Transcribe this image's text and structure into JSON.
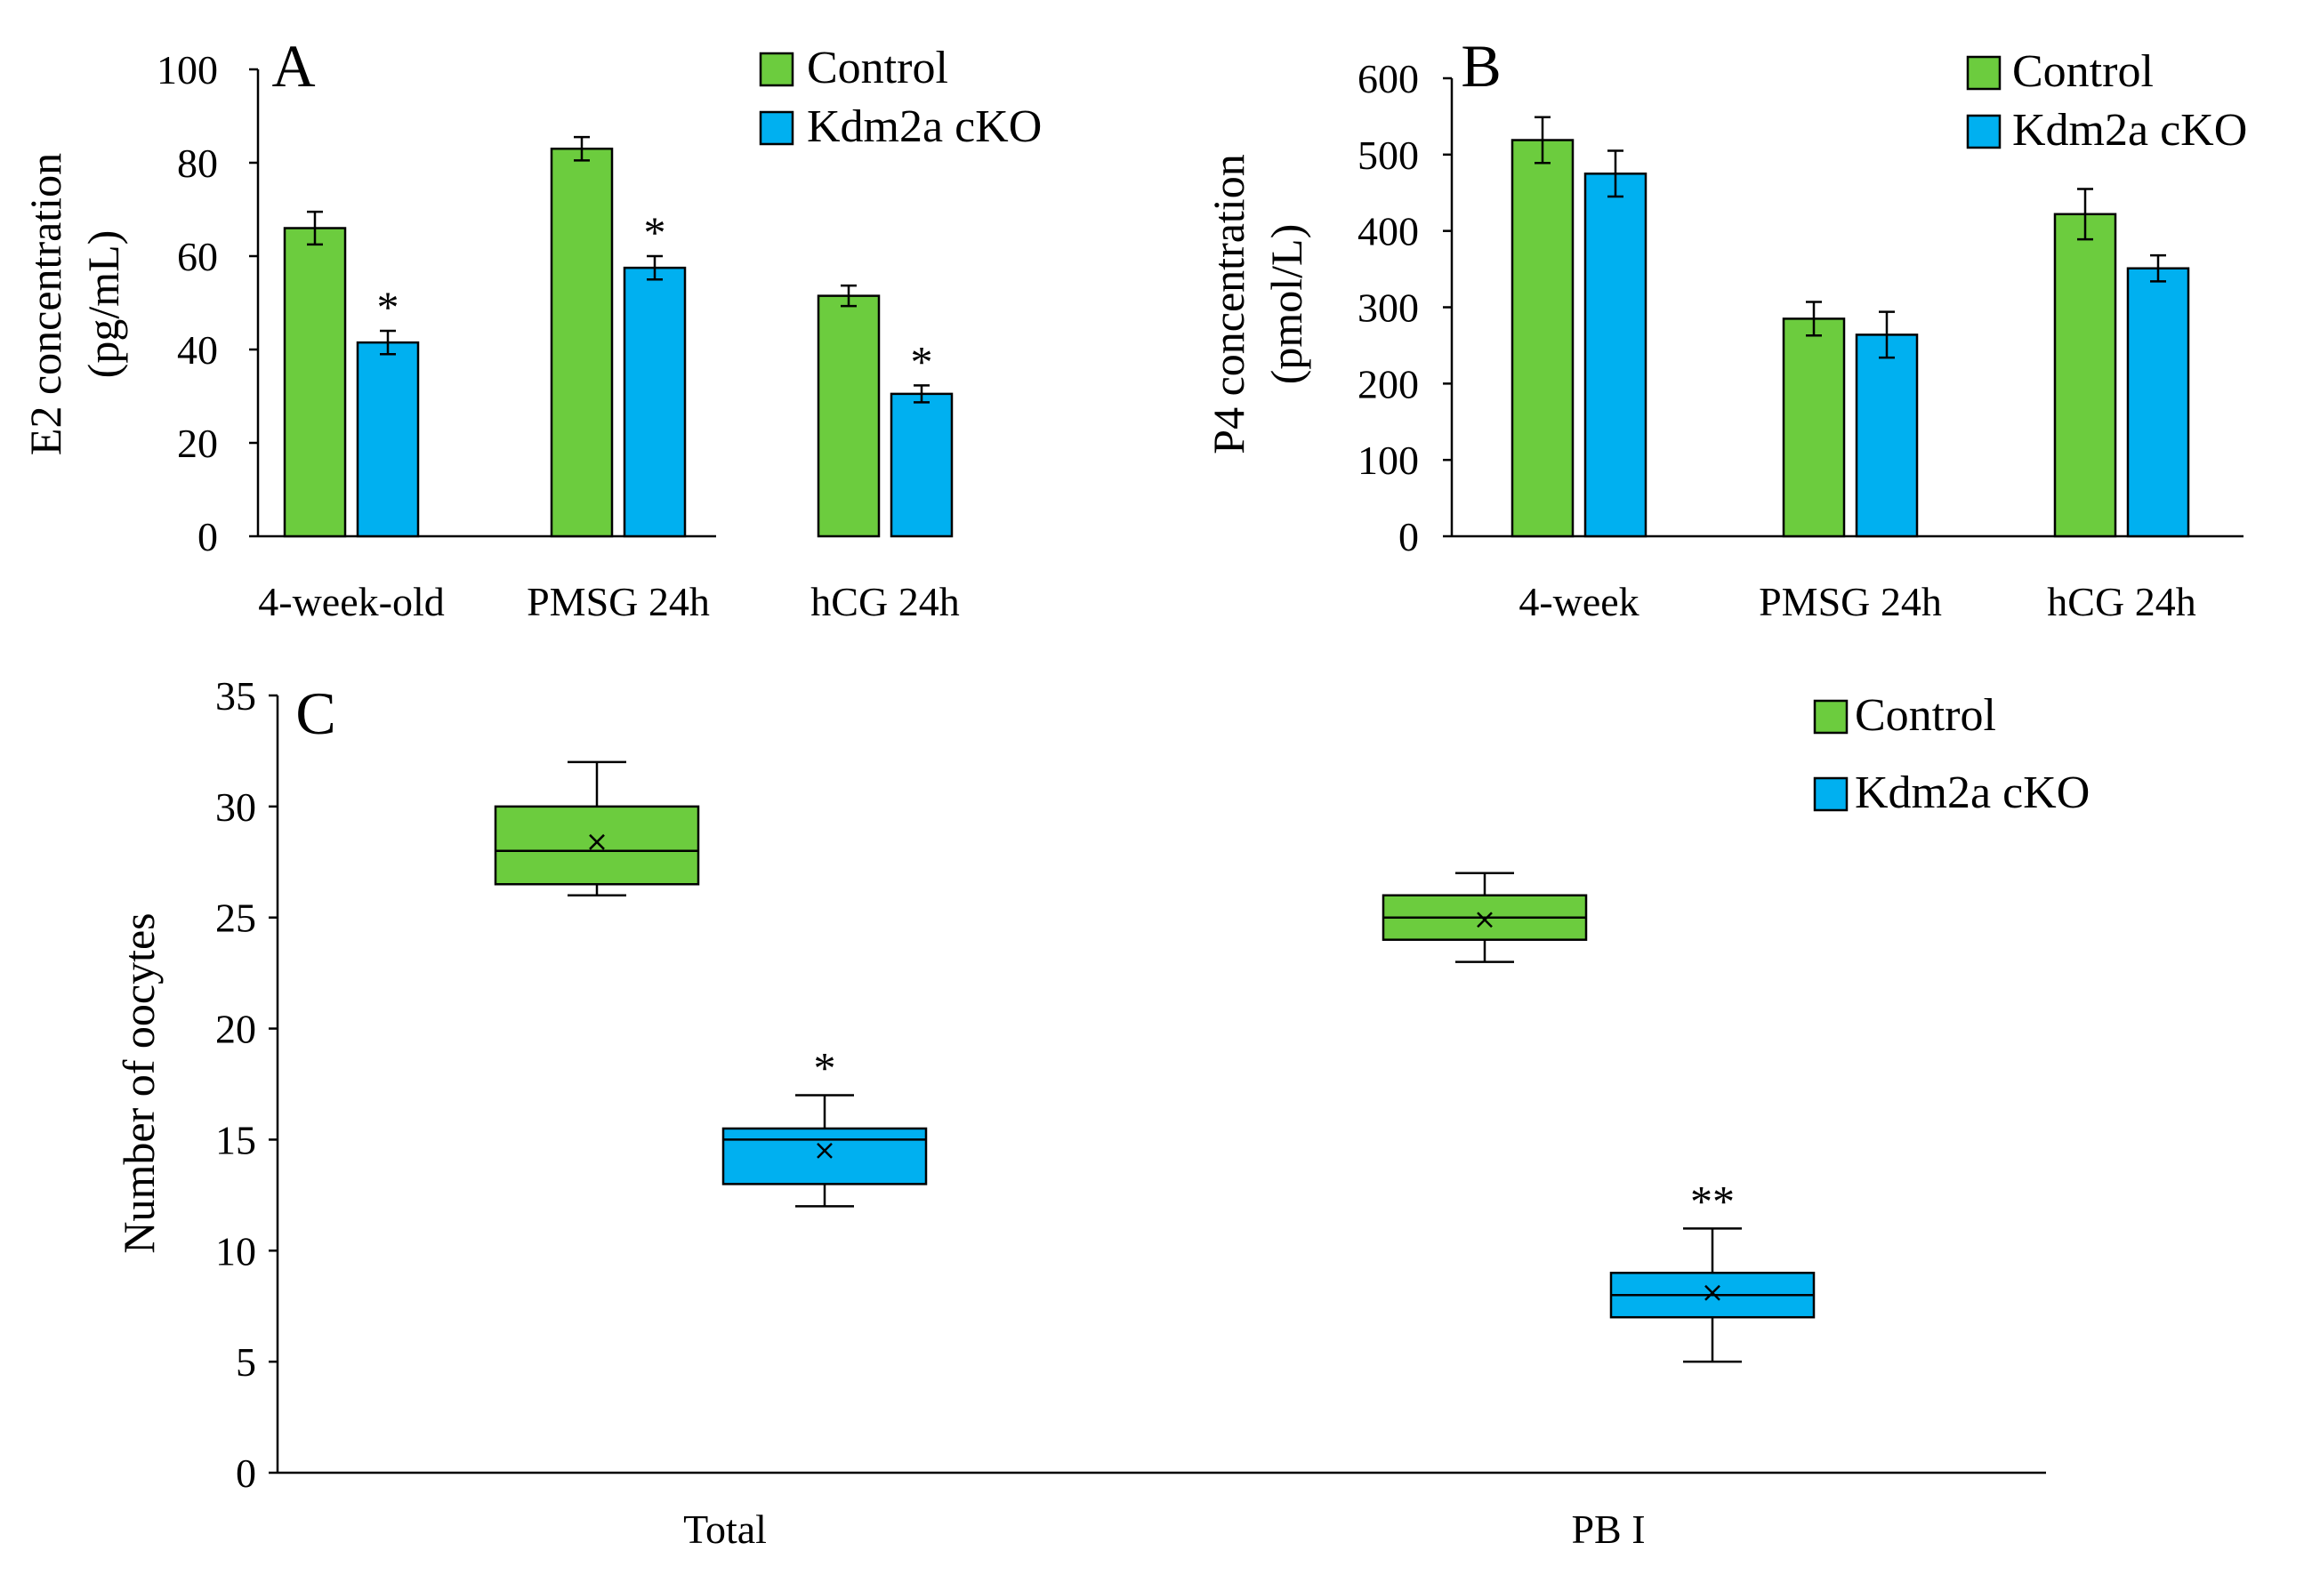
{
  "colors": {
    "control": "#6ccc3e",
    "cko": "#00b0f0",
    "axis": "#000000"
  },
  "chart_data": [
    {
      "panel": "A",
      "type": "bar",
      "ylabel_lines": [
        "E2 concentration",
        "(pg/mL)"
      ],
      "ylim": [
        0,
        100
      ],
      "yticks": [
        0,
        20,
        40,
        60,
        80,
        100
      ],
      "categories": [
        "4-week-old",
        "PMSG 24h",
        "hCG 24h"
      ],
      "legend_position": "top-right",
      "series": [
        {
          "name": "Control",
          "values": [
            66,
            83,
            51.5
          ],
          "errors": [
            3.5,
            2.5,
            2.2
          ],
          "marks": [
            "",
            "",
            ""
          ]
        },
        {
          "name": "Kdm2a cKO",
          "values": [
            41.5,
            57.5,
            30.5
          ],
          "errors": [
            2.5,
            2.5,
            1.8
          ],
          "marks": [
            "*",
            "*",
            "*"
          ]
        }
      ]
    },
    {
      "panel": "B",
      "type": "bar",
      "ylabel_lines": [
        "P4 concentration",
        "(pmol/L)"
      ],
      "ylim": [
        0,
        600
      ],
      "yticks": [
        0,
        100,
        200,
        300,
        400,
        500,
        600
      ],
      "categories": [
        "4-week",
        "PMSG 24h",
        "hCG 24h"
      ],
      "legend_position": "top-right",
      "series": [
        {
          "name": "Control",
          "values": [
            519,
            285,
            422
          ],
          "errors": [
            30,
            22,
            33
          ],
          "marks": [
            "",
            "",
            ""
          ]
        },
        {
          "name": "Kdm2a cKO",
          "values": [
            475,
            264,
            351
          ],
          "errors": [
            30,
            30,
            17
          ],
          "marks": [
            "",
            "",
            ""
          ]
        }
      ]
    },
    {
      "panel": "C",
      "type": "box",
      "ylabel": "Number of oocytes",
      "ylim": [
        0,
        35
      ],
      "yticks": [
        0,
        5,
        10,
        15,
        20,
        25,
        30,
        35
      ],
      "categories": [
        "Total",
        "PB I"
      ],
      "legend_position": "top-right",
      "series": [
        {
          "name": "Control",
          "boxes": [
            {
              "min": 26,
              "q1": 26.5,
              "median": 28,
              "q3": 30,
              "max": 32,
              "mean": 28.4,
              "mark": ""
            },
            {
              "min": 23,
              "q1": 24,
              "median": 25,
              "q3": 26,
              "max": 27,
              "mean": 24.9,
              "mark": ""
            }
          ]
        },
        {
          "name": "Kdm2a cKO",
          "boxes": [
            {
              "min": 12,
              "q1": 13,
              "median": 15,
              "q3": 15.5,
              "max": 17,
              "mean": 14.5,
              "mark": "*"
            },
            {
              "min": 5,
              "q1": 7,
              "median": 8,
              "q3": 9,
              "max": 11,
              "mean": 8.1,
              "mark": "**"
            }
          ]
        }
      ]
    }
  ]
}
